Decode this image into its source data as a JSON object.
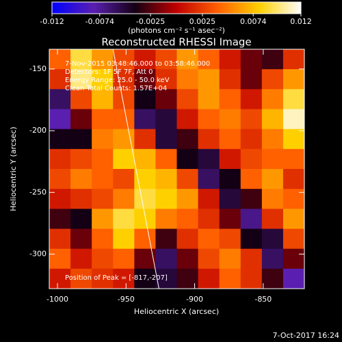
{
  "chart_data": {
    "type": "heatmap",
    "title": "Reconstructed RHESSI Image",
    "x_label": "Heliocentric X (arcsec)",
    "y_label": "Heliocentric Y (arcsec)",
    "colorbar_label": "(photons cm⁻² s⁻¹ asec⁻²)",
    "annotations": [
      "7-Nov-2015 03:48:46.000 to 03:58:46.000",
      "Detectors: 1F 5F 7F, Att 0",
      "Energy Range: 25.0 - 50.0 keV",
      "Clean     Total Counts: 1.57E+04"
    ],
    "peak_label": "Position of Peak = [-817,-207]",
    "footer": "7-Oct-2017 16:24",
    "xlim": [
      -1006,
      -820
    ],
    "xticks": [
      -1000,
      -950,
      -900,
      -850
    ],
    "ylim": [
      -328,
      -134
    ],
    "yticks": [
      -150,
      -200,
      -250,
      -300
    ],
    "clim": [
      -0.012,
      0.012
    ],
    "cticks": [
      -0.012,
      -0.0074,
      -0.0025,
      0.0025,
      0.0074,
      0.012
    ],
    "colormap": [
      "#0000ff",
      "#5a1fb0",
      "#140014",
      "#c00000",
      "#ff6000",
      "#ffd000",
      "#ffffff"
    ],
    "limb": {
      "x": [
        -959.5,
        -926
      ],
      "y": [
        -134,
        -328
      ],
      "color": "#ffffff"
    },
    "z": [
      [
        0.004,
        0.009,
        0.006,
        0.003,
        0.001,
        0.003,
        0.006,
        0.004,
        0.001,
        -0.002,
        -0.003,
        0.002
      ],
      [
        0.002,
        0.01,
        0.008,
        0.002,
        -0.002,
        0.002,
        0.005,
        0.006,
        0.002,
        -0.002,
        0.003,
        0.006
      ],
      [
        -0.006,
        0.003,
        0.007,
        0.003,
        -0.004,
        -0.002,
        0.003,
        0.006,
        0.004,
        0.001,
        0.005,
        0.009
      ],
      [
        -0.008,
        -0.002,
        0.004,
        0.004,
        -0.006,
        -0.005,
        0.001,
        0.004,
        0.005,
        0.003,
        0.007,
        0.011
      ],
      [
        -0.004,
        -0.004,
        0.005,
        0.006,
        0.002,
        -0.005,
        -0.003,
        0.002,
        0.004,
        0.002,
        0.005,
        0.008
      ],
      [
        0.002,
        0.003,
        0.004,
        0.008,
        0.007,
        0.004,
        -0.004,
        -0.005,
        0.001,
        0.003,
        0.004,
        0.004
      ],
      [
        0.003,
        0.005,
        0.004,
        0.003,
        0.008,
        0.007,
        0.003,
        -0.006,
        -0.004,
        0.004,
        0.006,
        0.002
      ],
      [
        0.001,
        0.002,
        0.003,
        0.005,
        0.009,
        0.008,
        0.006,
        0.001,
        -0.005,
        -0.003,
        0.005,
        0.004
      ],
      [
        -0.003,
        -0.004,
        0.006,
        0.009,
        0.008,
        0.005,
        0.004,
        0.002,
        -0.002,
        -0.007,
        0.002,
        0.006
      ],
      [
        0.002,
        -0.002,
        0.004,
        0.008,
        0.004,
        -0.003,
        0.002,
        0.004,
        0.003,
        -0.004,
        -0.005,
        0.003
      ],
      [
        0.004,
        0.001,
        0.003,
        0.004,
        -0.002,
        -0.006,
        -0.002,
        0.003,
        0.005,
        0.002,
        -0.006,
        -0.002
      ],
      [
        0.001,
        0.003,
        0.002,
        0.001,
        -0.004,
        -0.005,
        -0.003,
        0.001,
        0.004,
        0.002,
        -0.003,
        -0.008
      ]
    ]
  }
}
